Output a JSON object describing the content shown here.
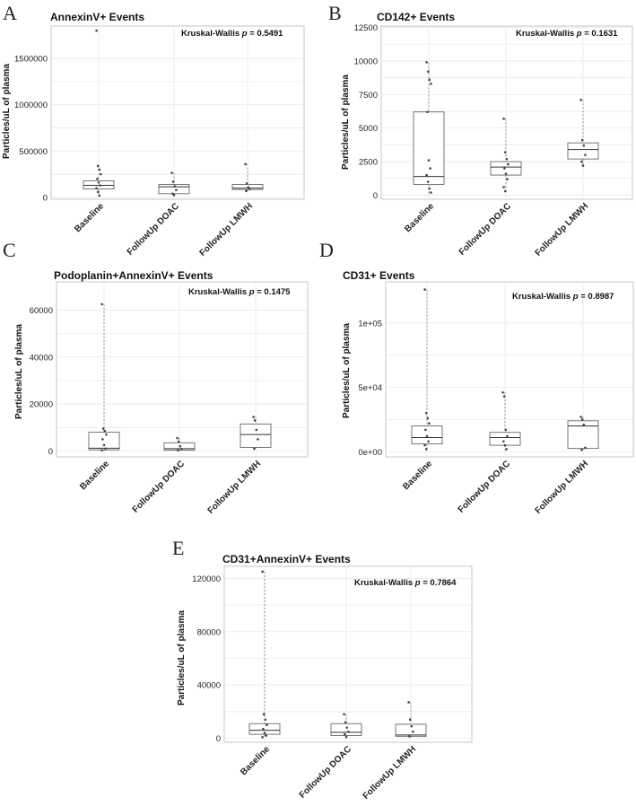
{
  "chart_data": [
    {
      "type": "box",
      "panel": "A",
      "title": "AnnexinV+ Events",
      "annotation_prefix": "Kruskal-Wallis ",
      "annotation_p": "p",
      "annotation_value": " = 0.5491",
      "ylabel": "Particles/uL of plasma",
      "ylim": [
        -20000,
        1850000
      ],
      "yticks": [
        0,
        500000,
        1000000,
        1500000
      ],
      "ytick_labels": [
        "0",
        "500000",
        "1000000",
        "1500000"
      ],
      "categories": [
        "Baseline",
        "FollowUp DOAC",
        "FollowUp LMWH"
      ],
      "boxes": [
        {
          "q1": 90000,
          "median": 130000,
          "q3": 180000,
          "lo": 10000,
          "hi": 340000,
          "points": [
            1800000,
            340000,
            300000,
            250000,
            200000,
            160000,
            130000,
            100000,
            60000,
            20000
          ]
        },
        {
          "q1": 40000,
          "median": 115000,
          "q3": 140000,
          "lo": 20000,
          "hi": 265000,
          "points": [
            265000,
            170000,
            120000,
            80000,
            40000,
            25000
          ]
        },
        {
          "q1": 85000,
          "median": 100000,
          "q3": 140000,
          "lo": 60000,
          "hi": 360000,
          "points": [
            360000,
            150000,
            110000,
            90000,
            70000
          ]
        }
      ]
    },
    {
      "type": "box",
      "panel": "B",
      "title": "CD142+ Events",
      "annotation_prefix": "Kruskal-Wallis ",
      "annotation_p": "p",
      "annotation_value": " = 0.1631",
      "ylabel": "Particles/uL of plasma",
      "ylim": [
        -300,
        12600
      ],
      "yticks": [
        0,
        2500,
        5000,
        7500,
        10000,
        12500
      ],
      "ytick_labels": [
        "0",
        "2500",
        "5000",
        "7500",
        "10000",
        "12500"
      ],
      "categories": [
        "Baseline",
        "FollowUp DOAC",
        "FollowUp LMWH"
      ],
      "boxes": [
        {
          "q1": 800,
          "median": 1400,
          "q3": 6200,
          "lo": 100,
          "hi": 9900,
          "points": [
            9900,
            9200,
            8600,
            8300,
            6200,
            2600,
            2000,
            1500,
            1000,
            500,
            200
          ]
        },
        {
          "q1": 1500,
          "median": 2100,
          "q3": 2500,
          "lo": 300,
          "hi": 5700,
          "points": [
            5700,
            3200,
            2700,
            2300,
            2000,
            1600,
            1200,
            600,
            300
          ]
        },
        {
          "q1": 2700,
          "median": 3400,
          "q3": 3900,
          "lo": 2100,
          "hi": 7100,
          "points": [
            7100,
            4100,
            3700,
            3000,
            2500,
            2200
          ]
        }
      ]
    },
    {
      "type": "box",
      "panel": "C",
      "title": "Podoplanin+AnnexinV+ Events",
      "annotation_prefix": "Kruskal-Wallis ",
      "annotation_p": "p",
      "annotation_value": " = 0.1475",
      "ylabel": "Particles/uL of plasma",
      "ylim": [
        -2500,
        72000
      ],
      "yticks": [
        0,
        20000,
        40000,
        60000
      ],
      "ytick_labels": [
        "0",
        "20000",
        "40000",
        "60000"
      ],
      "categories": [
        "Baseline",
        "FollowUp DOAC",
        "FollowUp LMWH"
      ],
      "boxes": [
        {
          "q1": 500,
          "median": 1200,
          "q3": 8000,
          "lo": 0,
          "hi": 62500,
          "points": [
            62500,
            9500,
            8500,
            7000,
            5000,
            2500,
            1000,
            300
          ]
        },
        {
          "q1": 400,
          "median": 1000,
          "q3": 3500,
          "lo": 0,
          "hi": 5500,
          "points": [
            5500,
            4000,
            2000,
            800,
            300
          ]
        },
        {
          "q1": 1500,
          "median": 7000,
          "q3": 11500,
          "lo": 1000,
          "hi": 14500,
          "points": [
            14500,
            13000,
            9000,
            5000,
            1000
          ]
        }
      ]
    },
    {
      "type": "box",
      "panel": "D",
      "title": "CD31+ Events",
      "annotation_prefix": "Kruskal-Wallis ",
      "annotation_p": "p",
      "annotation_value": " = 0.8987",
      "ylabel": "Particles/uL of plasma",
      "ylim": [
        -4000,
        132000
      ],
      "yticks": [
        0,
        50000,
        100000
      ],
      "ytick_labels": [
        "0e+00",
        "5e+04",
        "1e+05"
      ],
      "categories": [
        "Baseline",
        "FollowUp DOAC",
        "FollowUp LMWH"
      ],
      "boxes": [
        {
          "q1": 6000,
          "median": 11000,
          "q3": 20000,
          "lo": 1000,
          "hi": 126000,
          "points": [
            126000,
            30000,
            26000,
            22000,
            17000,
            12000,
            8000,
            5000,
            2000
          ]
        },
        {
          "q1": 5000,
          "median": 11000,
          "q3": 15000,
          "lo": 1000,
          "hi": 46000,
          "points": [
            46000,
            43000,
            17000,
            12000,
            8000,
            5000,
            2000
          ]
        },
        {
          "q1": 2500,
          "median": 20000,
          "q3": 24000,
          "lo": 1000,
          "hi": 27000,
          "points": [
            27000,
            25000,
            21000,
            3000,
            1500
          ]
        }
      ]
    },
    {
      "type": "box",
      "panel": "E",
      "title": "CD31+AnnexinV+ Events",
      "annotation_prefix": "Kruskal-Wallis ",
      "annotation_p": "p",
      "annotation_value": " = 0.7864",
      "ylabel": "Particles/uL of plasma",
      "ylim": [
        -3000,
        129000
      ],
      "yticks": [
        0,
        40000,
        80000,
        120000
      ],
      "ytick_labels": [
        "0",
        "40000",
        "80000",
        "120000"
      ],
      "categories": [
        "Baseline",
        "FollowUp DOAC",
        "FollowUp LMWH"
      ],
      "boxes": [
        {
          "q1": 3000,
          "median": 6000,
          "q3": 11000,
          "lo": 500,
          "hi": 125000,
          "points": [
            125000,
            18000,
            14000,
            10000,
            7000,
            4000,
            2000,
            800
          ]
        },
        {
          "q1": 2000,
          "median": 4500,
          "q3": 11000,
          "lo": 500,
          "hi": 18000,
          "points": [
            18000,
            12000,
            8000,
            5000,
            3000,
            1000
          ]
        },
        {
          "q1": 1500,
          "median": 2500,
          "q3": 10500,
          "lo": 500,
          "hi": 27000,
          "points": [
            27000,
            14000,
            9000,
            5000,
            1500
          ]
        }
      ]
    }
  ]
}
